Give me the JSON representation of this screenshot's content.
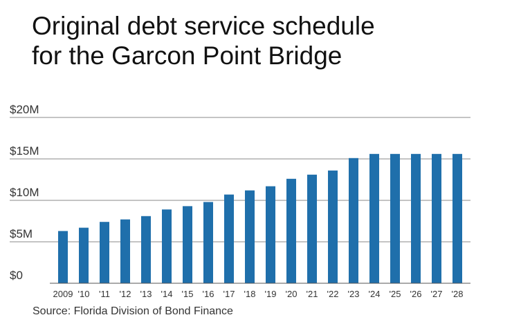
{
  "title": {
    "line1": "Original debt service schedule",
    "line2": "for the Garcon Point Bridge"
  },
  "source": "Source: Florida Division of Bond Finance",
  "colors": {
    "bar": "#1f6fab",
    "grid": "#888888",
    "axis": "#555555"
  },
  "chart_data": {
    "type": "bar",
    "title": "Original debt service schedule for the Garcon Point Bridge",
    "categories": [
      "2009",
      "'10",
      "'11",
      "'12",
      "'13",
      "'14",
      "'15",
      "'16",
      "'17",
      "'18",
      "'19",
      "'20",
      "'21",
      "'22",
      "'23",
      "'24",
      "'25",
      "'26",
      "'27",
      "'28"
    ],
    "values": [
      6.3,
      6.7,
      7.4,
      7.7,
      8.1,
      8.9,
      9.3,
      9.8,
      10.7,
      11.2,
      11.7,
      12.6,
      13.1,
      13.6,
      15.1,
      15.6,
      15.6,
      15.6,
      15.6,
      15.6
    ],
    "unit": "$M",
    "ylim": [
      0,
      20
    ],
    "yticks": [
      0,
      5,
      10,
      15,
      20
    ],
    "ytick_labels": [
      "$0",
      "$5M",
      "$10M",
      "$15M",
      "$20M"
    ],
    "grid": true
  }
}
